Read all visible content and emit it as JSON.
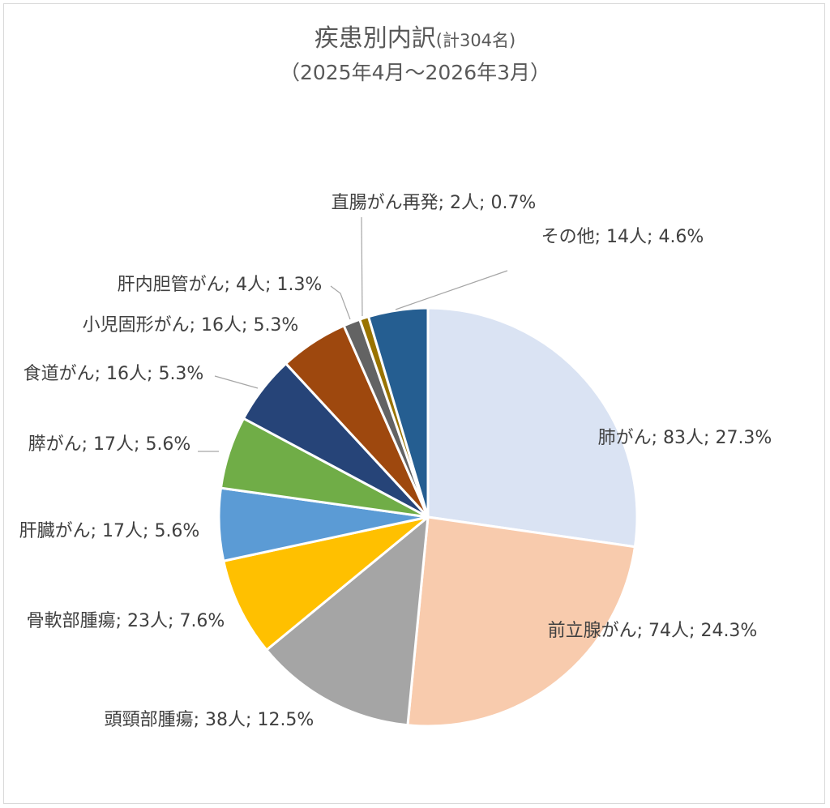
{
  "chart_data": {
    "type": "pie",
    "title": "疾患別内訳",
    "title_note": "(計304名)",
    "subtitle": "（2025年4月～2026年3月）",
    "slices": [
      {
        "name": "肺がん",
        "count_label": "83人",
        "value": 27.3,
        "label": "肺がん; 83人; 27.3%",
        "color": "#dae3f3"
      },
      {
        "name": "前立腺がん",
        "count_label": "74人",
        "value": 24.3,
        "label": "前立腺がん; 74人; 24.3%",
        "color": "#f8cbad"
      },
      {
        "name": "頭頸部腫瘍",
        "count_label": "38人",
        "value": 12.5,
        "label": "頭頸部腫瘍; 38人; 12.5%",
        "color": "#a5a5a5"
      },
      {
        "name": "骨軟部腫瘍",
        "count_label": "23人",
        "value": 7.6,
        "label": "骨軟部腫瘍; 23人; 7.6%",
        "color": "#ffc000"
      },
      {
        "name": "肝臓がん",
        "count_label": "17人",
        "value": 5.6,
        "label": "肝臓がん; 17人; 5.6%",
        "color": "#5b9bd5"
      },
      {
        "name": "膵がん",
        "count_label": "17人",
        "value": 5.6,
        "label": "膵がん; 17人; 5.6%",
        "color": "#70ad47"
      },
      {
        "name": "食道がん",
        "count_label": "16人",
        "value": 5.3,
        "label": "食道がん; 16人; 5.3%",
        "color": "#264478"
      },
      {
        "name": "小児固形がん",
        "count_label": "16人",
        "value": 5.3,
        "label": "小児固形がん; 16人; 5.3%",
        "color": "#9e480e"
      },
      {
        "name": "肝内胆管がん",
        "count_label": "4人",
        "value": 1.3,
        "label": "肝内胆管がん; 4人; 1.3%",
        "color": "#636363"
      },
      {
        "name": "直腸がん再発",
        "count_label": "2人",
        "value": 0.7,
        "label": "直腸がん再発; 2人; 0.7%",
        "color": "#997300"
      },
      {
        "name": "その他",
        "count_label": "14人",
        "value": 4.6,
        "label": "その他; 14人; 4.6%",
        "color": "#255e91"
      }
    ],
    "legend": "none",
    "label_style": "category; value; percent"
  }
}
